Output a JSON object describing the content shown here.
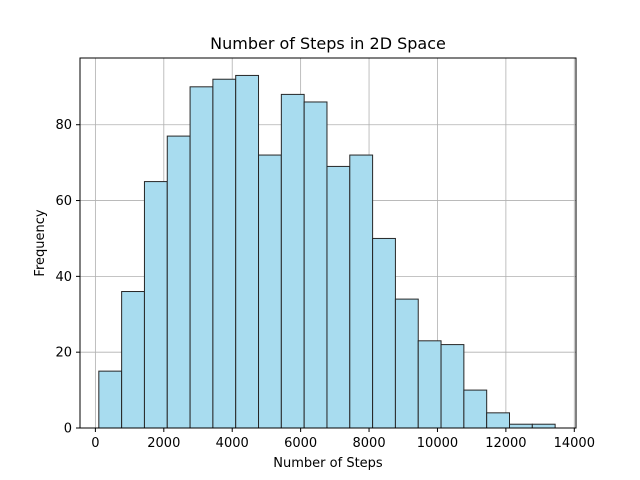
{
  "chart_data": {
    "type": "bar",
    "title": "Number of Steps in 2D Space",
    "xlabel": "Number of Steps",
    "ylabel": "Frequency",
    "xlim": [
      -450,
      14050
    ],
    "ylim": [
      0,
      97.6
    ],
    "xticks": [
      0,
      2000,
      4000,
      6000,
      8000,
      10000,
      12000,
      14000
    ],
    "yticks": [
      0,
      20,
      40,
      60,
      80
    ],
    "grid": true,
    "bar_fill": "#a8dcef",
    "bar_edge": "#262626",
    "bins": [
      {
        "x0": 100,
        "x1": 767,
        "value": 15
      },
      {
        "x0": 767,
        "x1": 1434,
        "value": 36
      },
      {
        "x0": 1434,
        "x1": 2101,
        "value": 65
      },
      {
        "x0": 2101,
        "x1": 2768,
        "value": 77
      },
      {
        "x0": 2768,
        "x1": 3435,
        "value": 90
      },
      {
        "x0": 3435,
        "x1": 4102,
        "value": 92
      },
      {
        "x0": 4102,
        "x1": 4769,
        "value": 93
      },
      {
        "x0": 4769,
        "x1": 5436,
        "value": 72
      },
      {
        "x0": 5436,
        "x1": 6103,
        "value": 88
      },
      {
        "x0": 6103,
        "x1": 6770,
        "value": 86
      },
      {
        "x0": 6770,
        "x1": 7437,
        "value": 69
      },
      {
        "x0": 7437,
        "x1": 8104,
        "value": 72
      },
      {
        "x0": 8104,
        "x1": 8771,
        "value": 50
      },
      {
        "x0": 8771,
        "x1": 9438,
        "value": 34
      },
      {
        "x0": 9438,
        "x1": 10105,
        "value": 23
      },
      {
        "x0": 10105,
        "x1": 10772,
        "value": 22
      },
      {
        "x0": 10772,
        "x1": 11439,
        "value": 10
      },
      {
        "x0": 11439,
        "x1": 12106,
        "value": 4
      },
      {
        "x0": 12106,
        "x1": 12773,
        "value": 1
      },
      {
        "x0": 12773,
        "x1": 13440,
        "value": 1
      }
    ]
  }
}
